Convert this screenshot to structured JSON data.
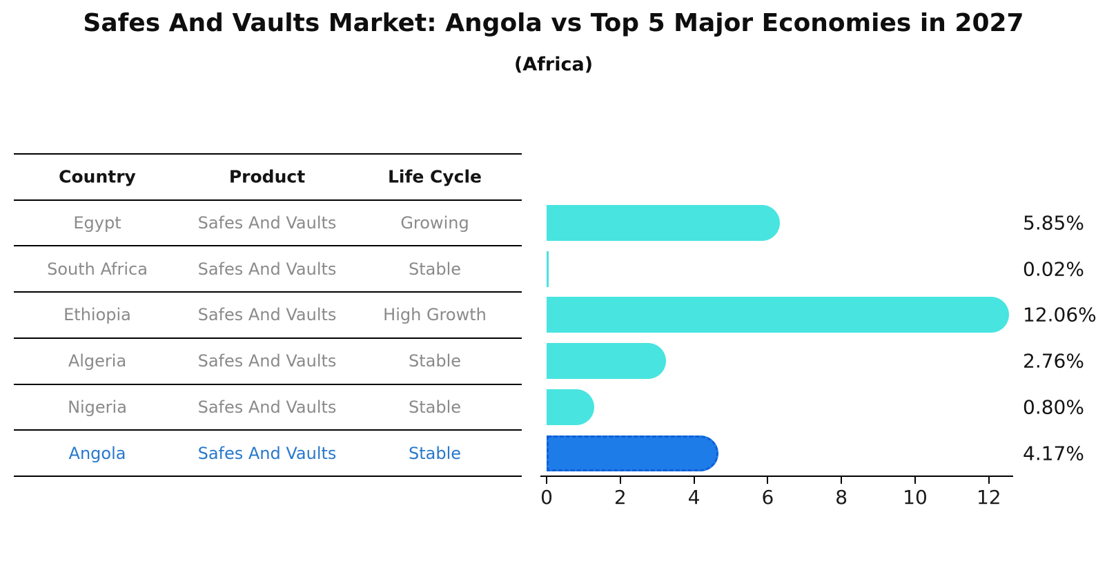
{
  "header": {
    "title": "Safes And Vaults Market: Angola vs Top 5 Major Economies in 2027",
    "subtitle": "(Africa)"
  },
  "table": {
    "columns": [
      "Country",
      "Product",
      "Life Cycle"
    ],
    "rows": [
      {
        "country": "Egypt",
        "product": "Safes And Vaults",
        "life_cycle": "Growing",
        "highlight": false
      },
      {
        "country": "South Africa",
        "product": "Safes And Vaults",
        "life_cycle": "Stable",
        "highlight": false
      },
      {
        "country": "Ethiopia",
        "product": "Safes And Vaults",
        "life_cycle": "High Growth",
        "highlight": false
      },
      {
        "country": "Algeria",
        "product": "Safes And Vaults",
        "life_cycle": "Stable",
        "highlight": false
      },
      {
        "country": "Nigeria",
        "product": "Safes And Vaults",
        "life_cycle": "Stable",
        "highlight": false
      },
      {
        "country": "Angola",
        "product": "Safes And Vaults",
        "life_cycle": "Stable",
        "highlight": true
      }
    ]
  },
  "chart_data": {
    "type": "bar",
    "orientation": "horizontal",
    "title": "Safes And Vaults Market: Angola vs Top 5 Major Economies in 2027",
    "subtitle": "(Africa)",
    "categories": [
      "Egypt",
      "South Africa",
      "Ethiopia",
      "Algeria",
      "Nigeria",
      "Angola"
    ],
    "values": [
      5.85,
      0.02,
      12.06,
      2.76,
      0.8,
      4.17
    ],
    "value_labels": [
      "5.85%",
      "0.02%",
      "12.06%",
      "2.76%",
      "0.80%",
      "4.17%"
    ],
    "xlabel": "",
    "ylabel": "",
    "xlim": [
      0,
      12.66
    ],
    "xticks": [
      0,
      2,
      4,
      6,
      8,
      10,
      12
    ],
    "grid": false,
    "legend": "none",
    "highlight_index": 5,
    "colors": {
      "bar": "#48e4e0",
      "highlight_bar": "#1e7ce8",
      "highlight_bar_border": "#0e5fd8",
      "highlight_text": "#2878cc",
      "table_text": "#8a8a8a",
      "text": "#141414",
      "line": "#000000",
      "background": "#ffffff"
    }
  }
}
